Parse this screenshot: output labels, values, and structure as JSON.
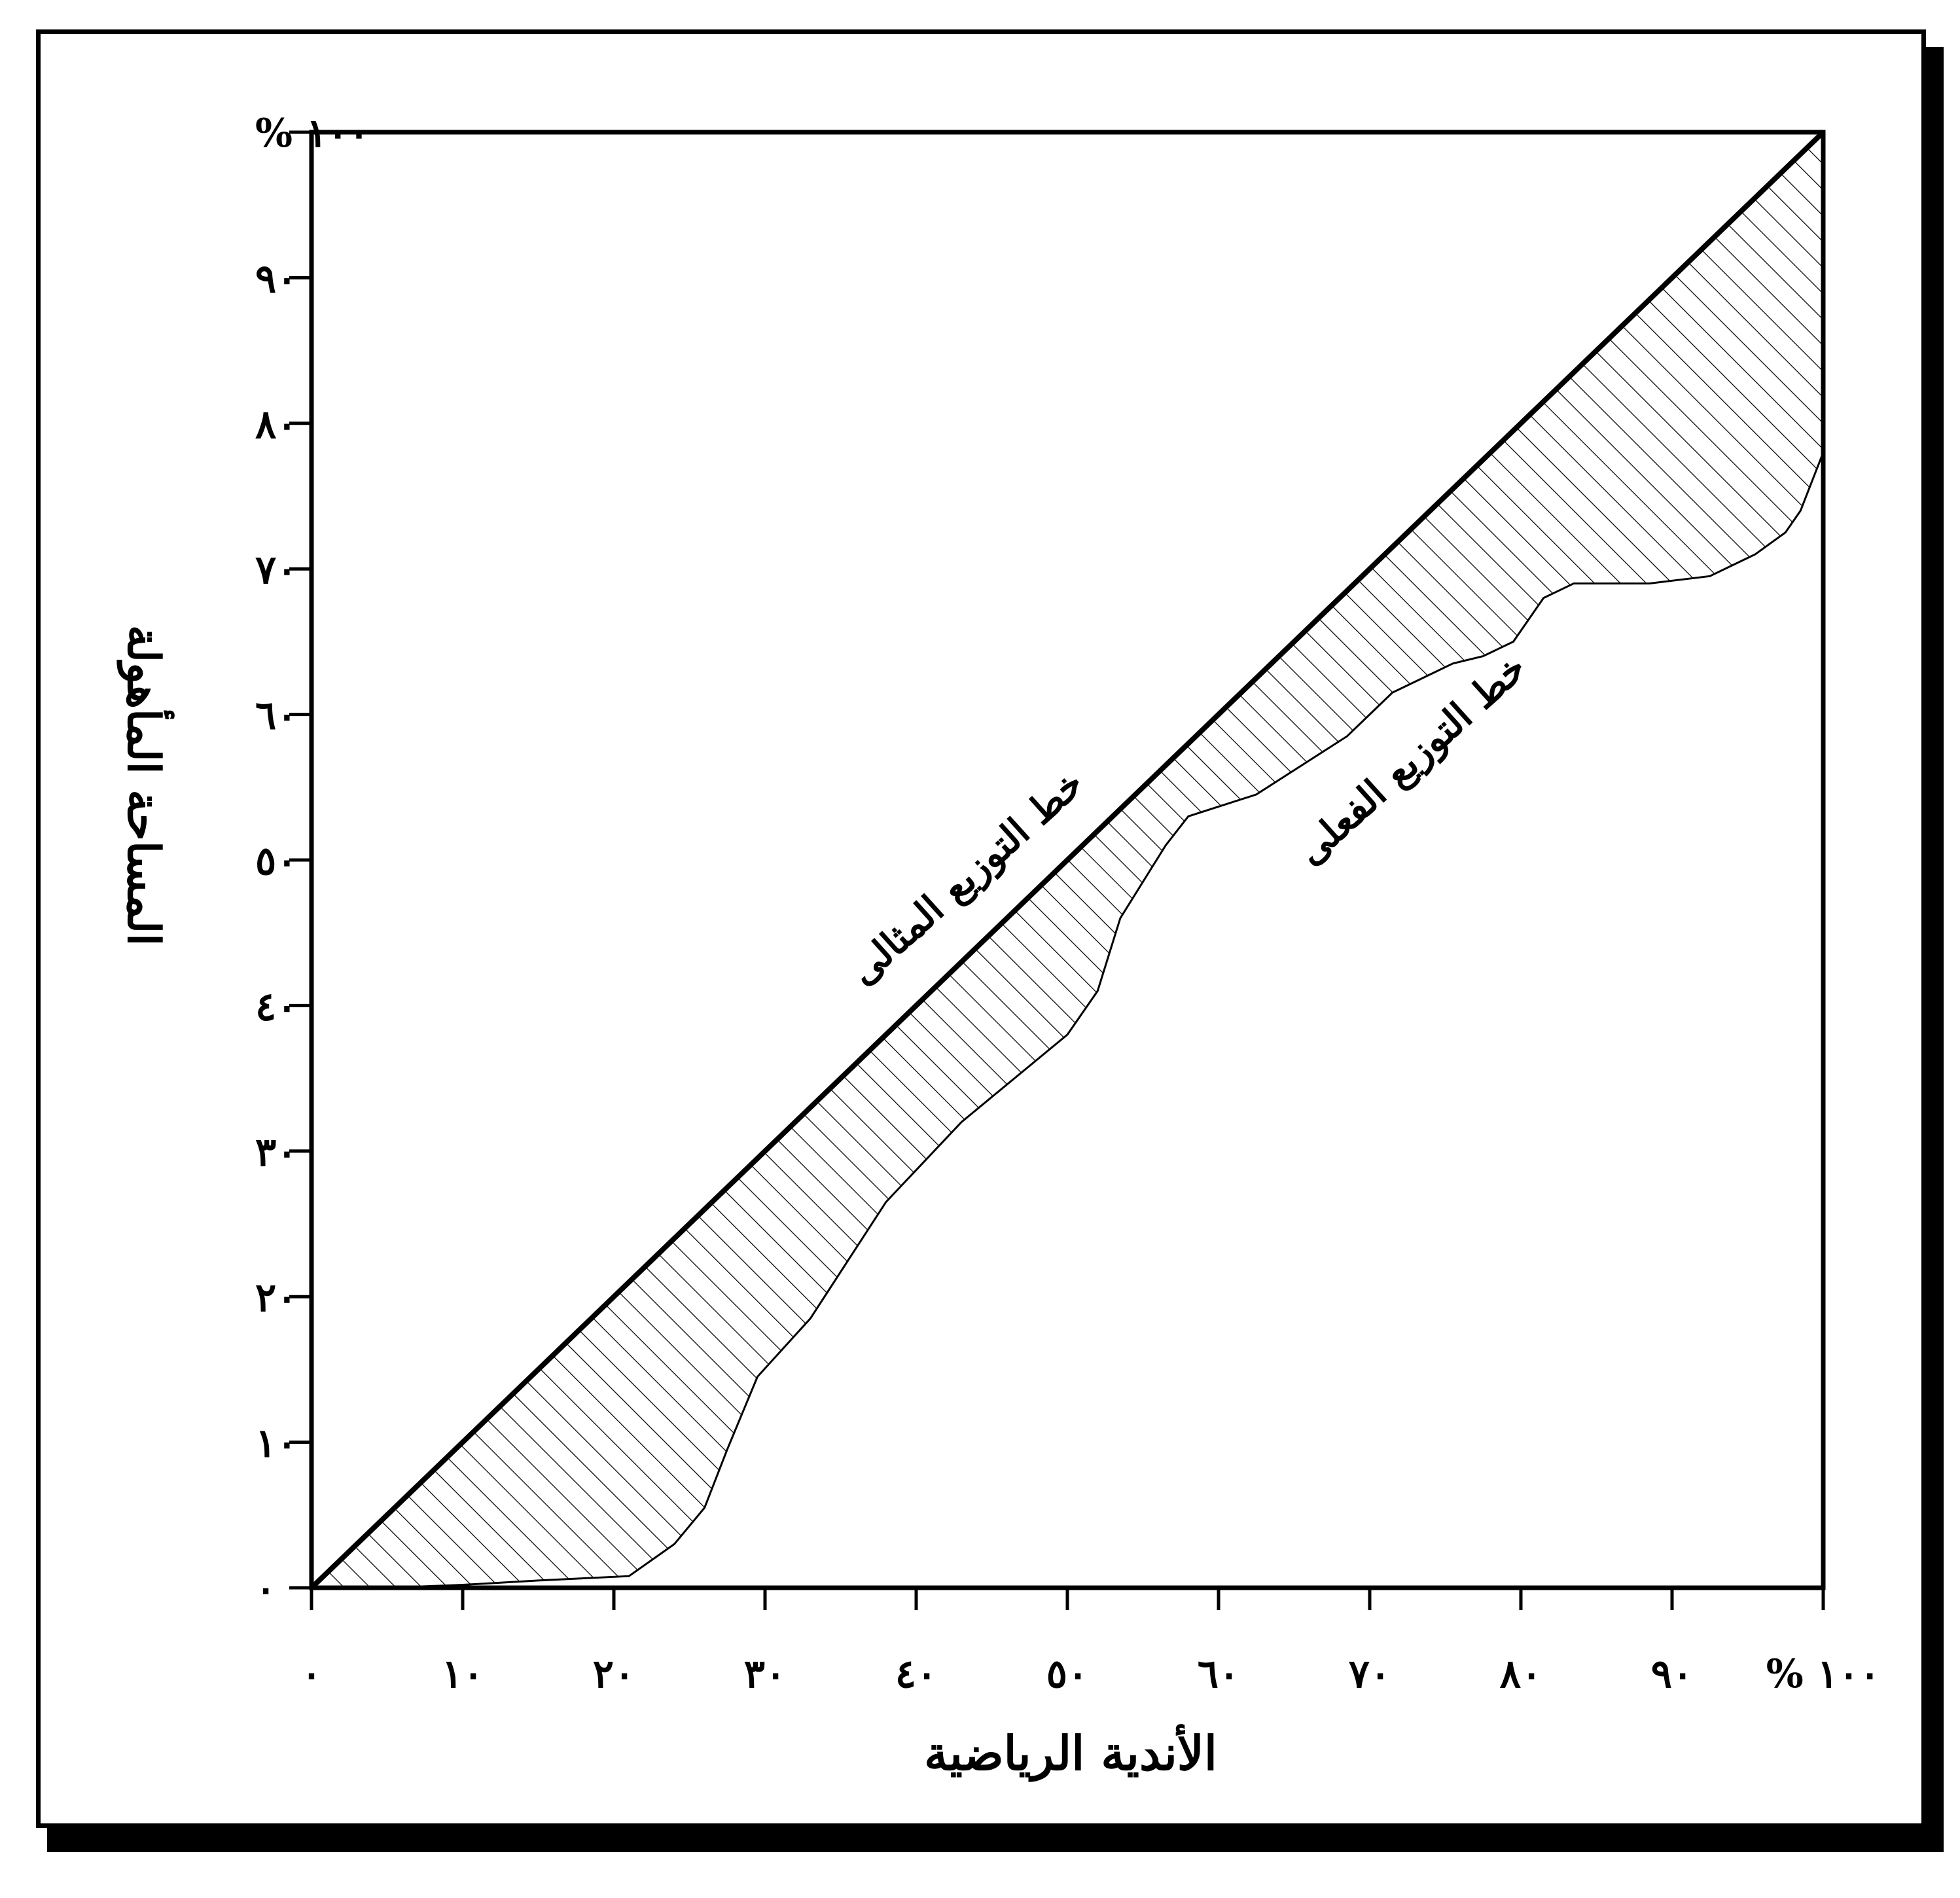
{
  "chart_data": {
    "type": "line",
    "title": "",
    "xlabel": "الأندية الرياضية",
    "ylabel": "المساحة المأهولة",
    "xlim": [
      0,
      100
    ],
    "ylim": [
      0,
      100
    ],
    "grid": false,
    "x_tick_labels": [
      "٠",
      "١٠",
      "٢٠",
      "٣٠",
      "٤٠",
      "٥٠",
      "٦٠",
      "٧٠",
      "٨٠",
      "٩٠",
      "١٠٠ %"
    ],
    "y_tick_labels": [
      "٠",
      "١٠",
      "٢٠",
      "٣٠",
      "٤٠",
      "٥٠",
      "٦٠",
      "٧٠",
      "٨٠",
      "٩٠",
      "١٠٠ %"
    ],
    "series": [
      {
        "name": "خط التوزيع المثالى",
        "x": [
          0,
          100
        ],
        "y": [
          0,
          100
        ]
      },
      {
        "name": "خط التوزيع الفعلى",
        "x": [
          0,
          5,
          10,
          15,
          21,
          24,
          26,
          27.5,
          29.5,
          33,
          35.5,
          38,
          43,
          50,
          52,
          53.5,
          56.5,
          58,
          62.5,
          68.5,
          71.5,
          75.5,
          77.5,
          79.5,
          81.5,
          83.5,
          88.5,
          92.5,
          95.5,
          97.5,
          98.5,
          100
        ],
        "y": [
          0,
          0,
          0.2,
          0.5,
          0.8,
          3,
          5.5,
          9.5,
          14.5,
          18.5,
          22.5,
          26.5,
          32,
          38,
          41,
          46,
          51,
          53,
          54.5,
          58.5,
          61.5,
          63.5,
          64,
          65,
          68,
          69,
          69,
          69.5,
          71,
          72.5,
          74,
          78
        ]
      }
    ],
    "annotations": [
      "خط التوزيع المثالى",
      "خط التوزيع الفعلى"
    ]
  }
}
